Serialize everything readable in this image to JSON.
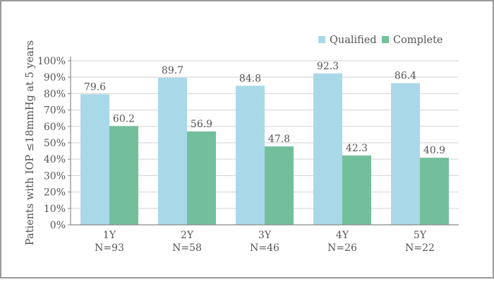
{
  "chart_data": {
    "type": "bar",
    "title": "",
    "xlabel": "",
    "ylabel": "Patients with IOP ≤18mmHg at 5 years",
    "ylim": [
      0,
      100
    ],
    "yticks": [
      "0%",
      "10%",
      "20%",
      "30%",
      "40%",
      "50%",
      "60%",
      "70%",
      "80%",
      "90%",
      "100%"
    ],
    "categories": [
      "1Y",
      "2Y",
      "3Y",
      "4Y",
      "5Y"
    ],
    "category_sublabels": [
      "N=93",
      "N=58",
      "N=46",
      "N=26",
      "N=22"
    ],
    "grid": true,
    "legend_position": "top-right",
    "series": [
      {
        "name": "Qualified",
        "color": "#a9d9e9",
        "values": [
          79.6,
          89.7,
          84.8,
          92.3,
          86.4
        ],
        "labels": [
          "79.6",
          "89.7",
          "84.8",
          "92.3",
          "86.4"
        ]
      },
      {
        "name": "Complete",
        "color": "#73bf9c",
        "values": [
          60.2,
          56.9,
          47.8,
          42.3,
          40.9
        ],
        "labels": [
          "60.2",
          "56.9",
          "47.8",
          "42.3",
          "40.9"
        ]
      }
    ]
  }
}
